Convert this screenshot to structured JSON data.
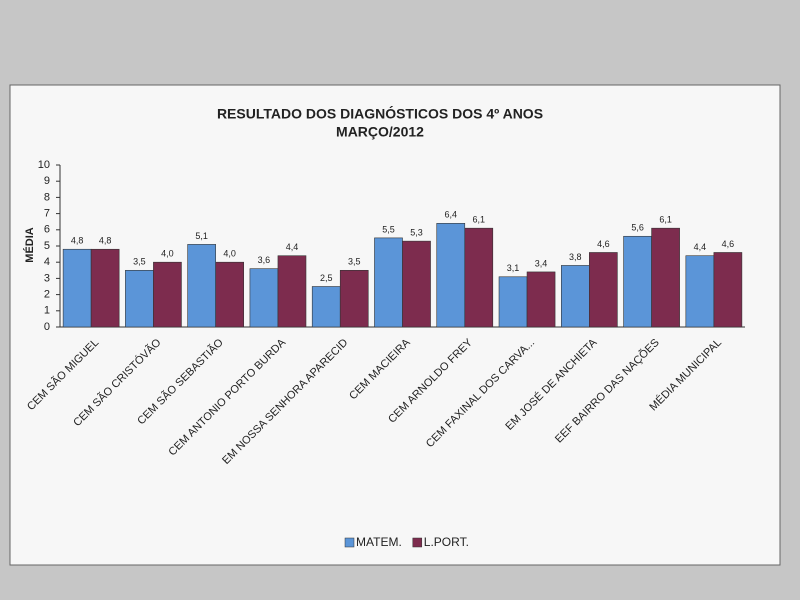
{
  "chart_data": {
    "type": "bar",
    "title": "RESULTADO DOS DIAGNÓSTICOS DOS 4º ANOS",
    "subtitle": "MARÇO/2012",
    "y_label": "MÉDIA",
    "categories": [
      "CEM SÃO MIGUEL",
      "CEM SÃO CRISTÓVÃO",
      "CEM SÃO SEBASTIÃO",
      "CEM ANTONIO PORTO BURDA",
      "EM NOSSA SENHORA APARECID",
      "CEM MACIEIRA",
      "CEM ARNOLDO FREY",
      "CEM FAXINAL DOS CARVA...",
      "EM JOSÉ DE ANCHIETA",
      "EEF BAIRRO DAS NAÇÕES",
      "MÉDIA MUNICIPAL"
    ],
    "series": [
      {
        "name": "MATEM.",
        "color": "#5b95d8",
        "values": [
          4.8,
          3.5,
          5.1,
          3.6,
          2.5,
          5.5,
          6.4,
          3.1,
          3.8,
          5.6,
          4.4
        ],
        "value_labels": [
          "4,8",
          "3,5",
          "5,1",
          "3,6",
          "2,5",
          "5,5",
          "6,4",
          "3,1",
          "3,8",
          "5,6",
          "4,4"
        ]
      },
      {
        "name": "L.PORT.",
        "color": "#7d2c4e",
        "values": [
          4.8,
          4.0,
          4.0,
          4.4,
          3.5,
          5.3,
          6.1,
          3.4,
          4.6,
          6.1,
          4.6
        ],
        "value_labels": [
          "4,8",
          "4,0",
          "4,0",
          "4,4",
          "3,5",
          "5,3",
          "6,1",
          "3,4",
          "4,6",
          "6,1",
          "4,6"
        ]
      }
    ],
    "ylim": [
      0,
      10
    ],
    "yticks": [
      0,
      1,
      2,
      3,
      4,
      5,
      6,
      7,
      8,
      9,
      10
    ],
    "legend": "bottom"
  }
}
